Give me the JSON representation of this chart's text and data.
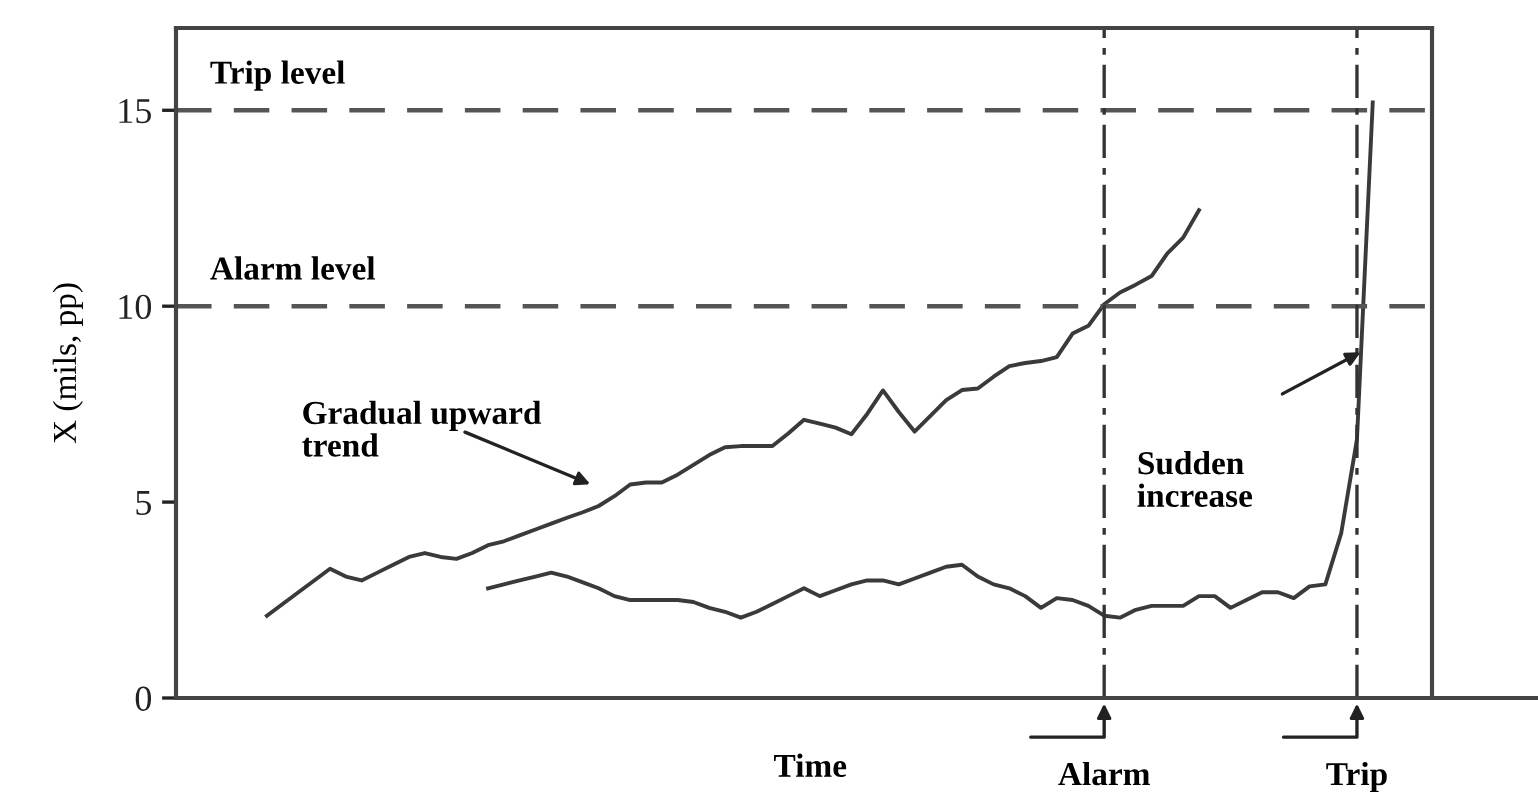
{
  "chart_data": {
    "type": "line",
    "ylabel": "X (mils, pp)",
    "xlabel": "Time",
    "categories": [
      null,
      null,
      null,
      null,
      null,
      null,
      null,
      null,
      null,
      null,
      null,
      null,
      null,
      null,
      null,
      null,
      null,
      null,
      null,
      null,
      null,
      null,
      null,
      null,
      null,
      null,
      null,
      null,
      null,
      null,
      null,
      null,
      null,
      null,
      null,
      null,
      null,
      null,
      null,
      null,
      null,
      null,
      null,
      null,
      null,
      null,
      null,
      null,
      null,
      null,
      null,
      null,
      null,
      "Alarm",
      null,
      null,
      null,
      null,
      null,
      null,
      null,
      null,
      null,
      null,
      null,
      null,
      null,
      null,
      null,
      "Trip",
      null
    ],
    "series": [
      {
        "color": "#3a3a3a",
        "values": [
          2.1,
          2.4,
          2.7,
          3.0,
          3.3,
          3.1,
          3.0,
          3.2,
          3.4,
          3.6,
          3.7,
          3.6,
          3.55,
          3.7,
          3.9,
          4.0,
          4.15,
          4.3,
          4.45,
          4.6,
          4.74,
          4.9,
          5.15,
          5.45,
          5.5,
          5.5,
          5.7,
          5.95,
          6.2,
          6.4,
          6.43,
          6.43,
          6.43,
          6.75,
          7.1,
          7.0,
          6.9,
          6.73,
          7.25,
          7.85,
          7.3,
          6.8,
          7.2,
          7.6,
          7.86,
          7.9,
          8.2,
          8.47,
          8.55,
          8.6,
          8.7,
          9.3,
          9.5,
          10.05,
          10.35,
          10.55,
          10.77,
          11.35,
          11.75,
          12.45,
          null,
          null,
          null,
          null,
          null,
          null,
          null,
          null,
          null,
          null,
          null
        ]
      },
      {
        "color": "#3a3a3a",
        "values": [
          null,
          null,
          null,
          null,
          null,
          null,
          null,
          null,
          null,
          null,
          null,
          null,
          null,
          null,
          2.8,
          2.9,
          3.0,
          3.1,
          3.2,
          3.1,
          2.95,
          2.8,
          2.6,
          2.5,
          2.5,
          2.5,
          2.5,
          2.45,
          2.3,
          2.2,
          2.05,
          2.2,
          2.4,
          2.6,
          2.8,
          2.6,
          2.75,
          2.9,
          3.0,
          3.0,
          2.9,
          3.05,
          3.2,
          3.35,
          3.4,
          3.1,
          2.9,
          2.8,
          2.6,
          2.3,
          2.55,
          2.5,
          2.35,
          2.1,
          2.05,
          2.25,
          2.35,
          2.35,
          2.35,
          2.6,
          2.6,
          2.3,
          2.5,
          2.7,
          2.7,
          2.55,
          2.85,
          2.9,
          4.2,
          6.6,
          15.2
        ]
      }
    ],
    "ylim": [
      0,
      17.1
    ],
    "yticks": [
      0,
      5,
      10,
      15
    ],
    "tick_labels": "y",
    "ref_lines": [
      {
        "axis": "y",
        "value": 15,
        "label": "Trip level",
        "line_style": "dashed",
        "color": "#555555"
      },
      {
        "axis": "y",
        "value": 10,
        "label": "Alarm level",
        "line_style": "dashed",
        "color": "#555555"
      },
      {
        "axis": "x",
        "value": "Alarm",
        "line_style": "dashdot",
        "color": "#333333"
      },
      {
        "axis": "x",
        "value": "Trip",
        "line_style": "dashdot",
        "color": "#333333"
      }
    ],
    "annotations": [
      "Gradual upward\ntrend",
      "Sudden\nincrease"
    ],
    "grid": false,
    "legend": false,
    "marker": "none",
    "line_style": "solid"
  }
}
